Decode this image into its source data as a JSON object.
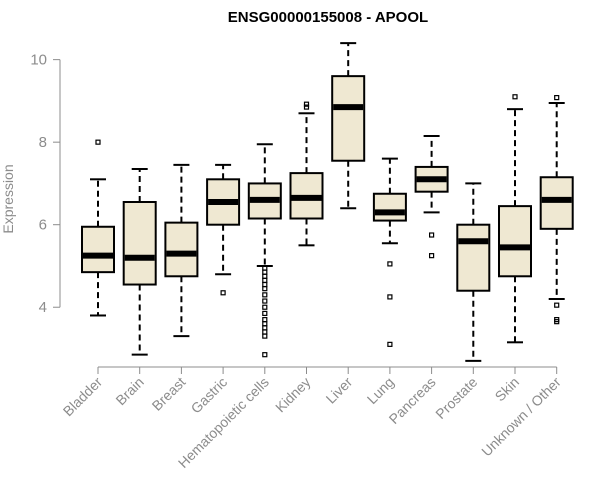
{
  "chart_data": {
    "type": "boxplot",
    "title": "ENSG00000155008 - APOOL",
    "ylabel": "Expression",
    "ylim": [
      2.6,
      10.5
    ],
    "yticks": [
      4,
      6,
      8,
      10
    ],
    "categories": [
      "Bladder",
      "Brain",
      "Breast",
      "Gastric",
      "Hematopoietic cells",
      "Kidney",
      "Liver",
      "Lung",
      "Pancreas",
      "Prostate",
      "Skin",
      "Unknown / Other"
    ],
    "boxes": [
      {
        "min": 3.8,
        "q1": 4.85,
        "median": 5.25,
        "q3": 5.95,
        "max": 7.1,
        "outliers": [
          8.0
        ]
      },
      {
        "min": 2.85,
        "q1": 4.55,
        "median": 5.2,
        "q3": 6.55,
        "max": 7.35,
        "outliers": []
      },
      {
        "min": 3.3,
        "q1": 4.75,
        "median": 5.3,
        "q3": 6.05,
        "max": 7.45,
        "outliers": []
      },
      {
        "min": 4.8,
        "q1": 6.0,
        "median": 6.55,
        "q3": 7.1,
        "max": 7.45,
        "outliers": [
          4.35
        ]
      },
      {
        "min": 5.0,
        "q1": 6.15,
        "median": 6.6,
        "q3": 7.0,
        "max": 7.95,
        "outliers": [
          4.95,
          4.85,
          4.75,
          4.65,
          4.55,
          4.45,
          4.3,
          4.15,
          4.0,
          3.85,
          3.7,
          3.6,
          3.5,
          3.4,
          3.3,
          2.85
        ]
      },
      {
        "min": 5.5,
        "q1": 6.15,
        "median": 6.65,
        "q3": 7.25,
        "max": 8.7,
        "outliers": [
          8.85,
          8.92
        ]
      },
      {
        "min": 6.4,
        "q1": 7.55,
        "median": 8.85,
        "q3": 9.6,
        "max": 10.4,
        "outliers": []
      },
      {
        "min": 5.55,
        "q1": 6.1,
        "median": 6.3,
        "q3": 6.75,
        "max": 7.6,
        "outliers": [
          5.05,
          4.25,
          3.1
        ]
      },
      {
        "min": 6.3,
        "q1": 6.8,
        "median": 7.1,
        "q3": 7.4,
        "max": 8.15,
        "outliers": [
          5.75,
          5.25
        ]
      },
      {
        "min": 2.7,
        "q1": 4.4,
        "median": 5.6,
        "q3": 6.0,
        "max": 7.0,
        "outliers": []
      },
      {
        "min": 3.15,
        "q1": 4.75,
        "median": 5.45,
        "q3": 6.45,
        "max": 8.8,
        "outliers": [
          9.1
        ]
      },
      {
        "min": 4.2,
        "q1": 5.9,
        "median": 6.6,
        "q3": 7.15,
        "max": 8.95,
        "outliers": [
          9.08,
          4.05,
          3.7,
          3.65
        ]
      }
    ]
  }
}
